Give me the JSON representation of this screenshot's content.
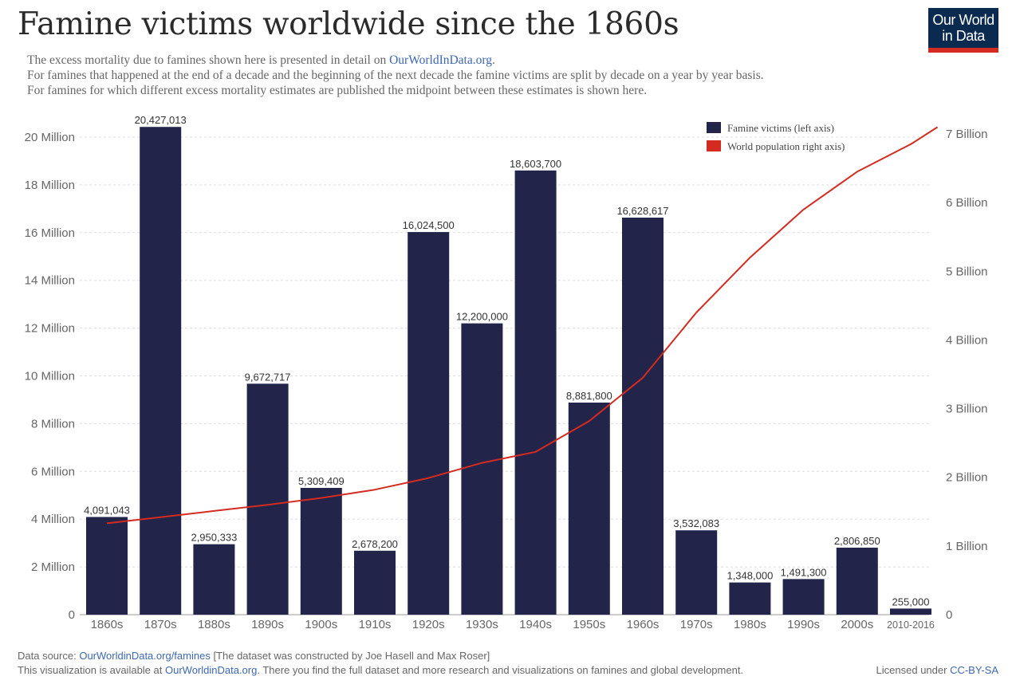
{
  "header": {
    "title": "Famine victims worldwide since the 1860s",
    "subtitle_line1_pre": "The excess mortality due to famines shown here is presented in detail on ",
    "subtitle_line1_link": "OurWorldInData.org",
    "subtitle_line1_post": ".",
    "subtitle_line2": "For famines that happened at the end of a decade and the beginning of the next decade the famine victims are split by decade on a year by year basis.",
    "subtitle_line3": "For famines for which different excess mortality estimates are published the midpoint between these estimates is shown here."
  },
  "logo": {
    "line1": "Our World",
    "line2": "in Data"
  },
  "footer": {
    "source_prefix": "Data source: ",
    "source_link": "OurWorldinData.org/famines",
    "source_suffix": " [The dataset was constructed by Joe Hasell and Max Roser]",
    "available_prefix": "This visualization is available at ",
    "available_link": "OurWorldinData.org",
    "available_suffix": ". There you find the full dataset and more research and visualizations on famines and global development.",
    "license_prefix": "Licensed under ",
    "license_link": "CC-BY-SA"
  },
  "colors": {
    "bar": "#22244a",
    "line": "#d42b21",
    "grid": "#dddddd",
    "axis_text": "#666666",
    "link": "#3d67b1"
  },
  "chart_data": {
    "type": "bar",
    "categories": [
      "1860s",
      "1870s",
      "1880s",
      "1890s",
      "1900s",
      "1910s",
      "1920s",
      "1930s",
      "1940s",
      "1950s",
      "1960s",
      "1970s",
      "1980s",
      "1990s",
      "2000s",
      "2010-2016"
    ],
    "series": [
      {
        "name": "Famine victims (left axis)",
        "type": "bar",
        "axis": "left",
        "values": [
          4091043,
          20427013,
          2950333,
          9672717,
          5309409,
          2678200,
          16024500,
          12200000,
          18603700,
          8881800,
          16628617,
          3532083,
          1348000,
          1491300,
          2806850,
          255000
        ],
        "labels": [
          "4,091,043",
          "20,427,013",
          "2,950,333",
          "9,672,717",
          "5,309,409",
          "2,678,200",
          "16,024,500",
          "12,200,000",
          "18,603,700",
          "8,881,800",
          "16,628,617",
          "3,532,083",
          "1,348,000",
          "1,491,300",
          "2,806,850",
          "255,000"
        ]
      },
      {
        "name": "World population right axis)",
        "type": "line",
        "axis": "right",
        "x": [
          1860,
          1870,
          1880,
          1890,
          1900,
          1910,
          1920,
          1930,
          1940,
          1950,
          1960,
          1970,
          1980,
          1990,
          2000,
          2010,
          2015
        ],
        "values": [
          1330000000.0,
          1420000000.0,
          1510000000.0,
          1600000000.0,
          1700000000.0,
          1820000000.0,
          1990000000.0,
          2210000000.0,
          2370000000.0,
          2820000000.0,
          3450000000.0,
          4400000000.0,
          5200000000.0,
          5900000000.0,
          6450000000.0,
          6850000000.0,
          7100000000.0
        ]
      }
    ],
    "left_axis": {
      "ylim": [
        0,
        20000000
      ],
      "ticks": [
        0,
        2000000,
        4000000,
        6000000,
        8000000,
        10000000,
        12000000,
        14000000,
        16000000,
        18000000,
        20000000
      ],
      "tick_labels": [
        "0",
        "2 Million",
        "4 Million",
        "6 Million",
        "8 Million",
        "10 Million",
        "12 Million",
        "14 Million",
        "16 Million",
        "18 Million",
        "20 Million"
      ]
    },
    "right_axis": {
      "ylim": [
        0,
        7000000000
      ],
      "ticks": [
        0,
        1000000000,
        2000000000,
        3000000000,
        4000000000,
        5000000000,
        6000000000,
        7000000000
      ],
      "tick_labels": [
        "0",
        "1 Billion",
        "2 Billion",
        "3 Billion",
        "4 Billion",
        "5 Billion",
        "6 Billion",
        "7 Billion"
      ]
    },
    "legend_position": "top-right",
    "grid": true
  }
}
